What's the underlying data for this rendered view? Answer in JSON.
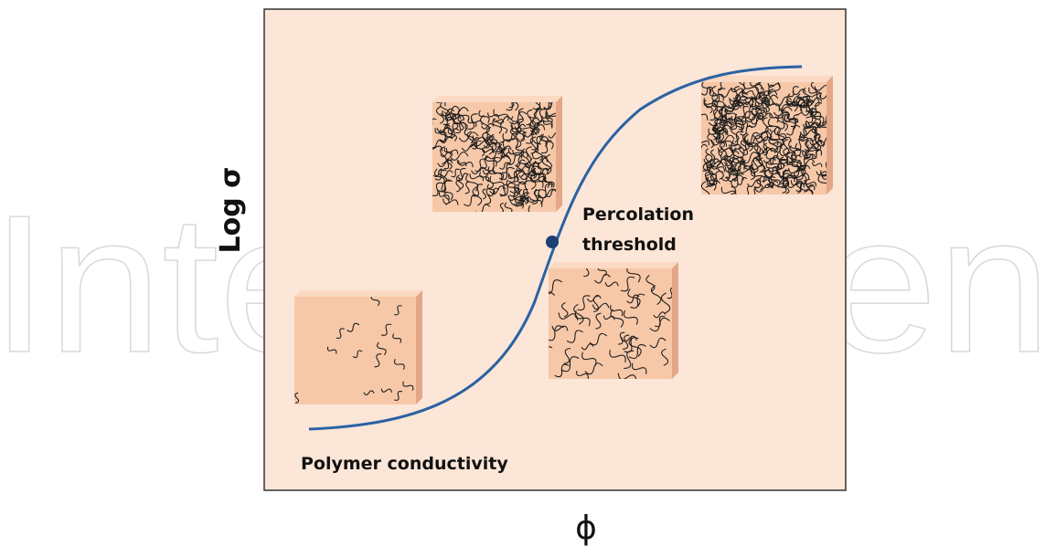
{
  "axes": {
    "y_label": "Log σ",
    "x_label": "ϕ"
  },
  "annotations": {
    "percolation": [
      "Percolation",
      "threshold"
    ],
    "polymer": "Polymer conductivity"
  },
  "watermark": "IntechOpen"
}
